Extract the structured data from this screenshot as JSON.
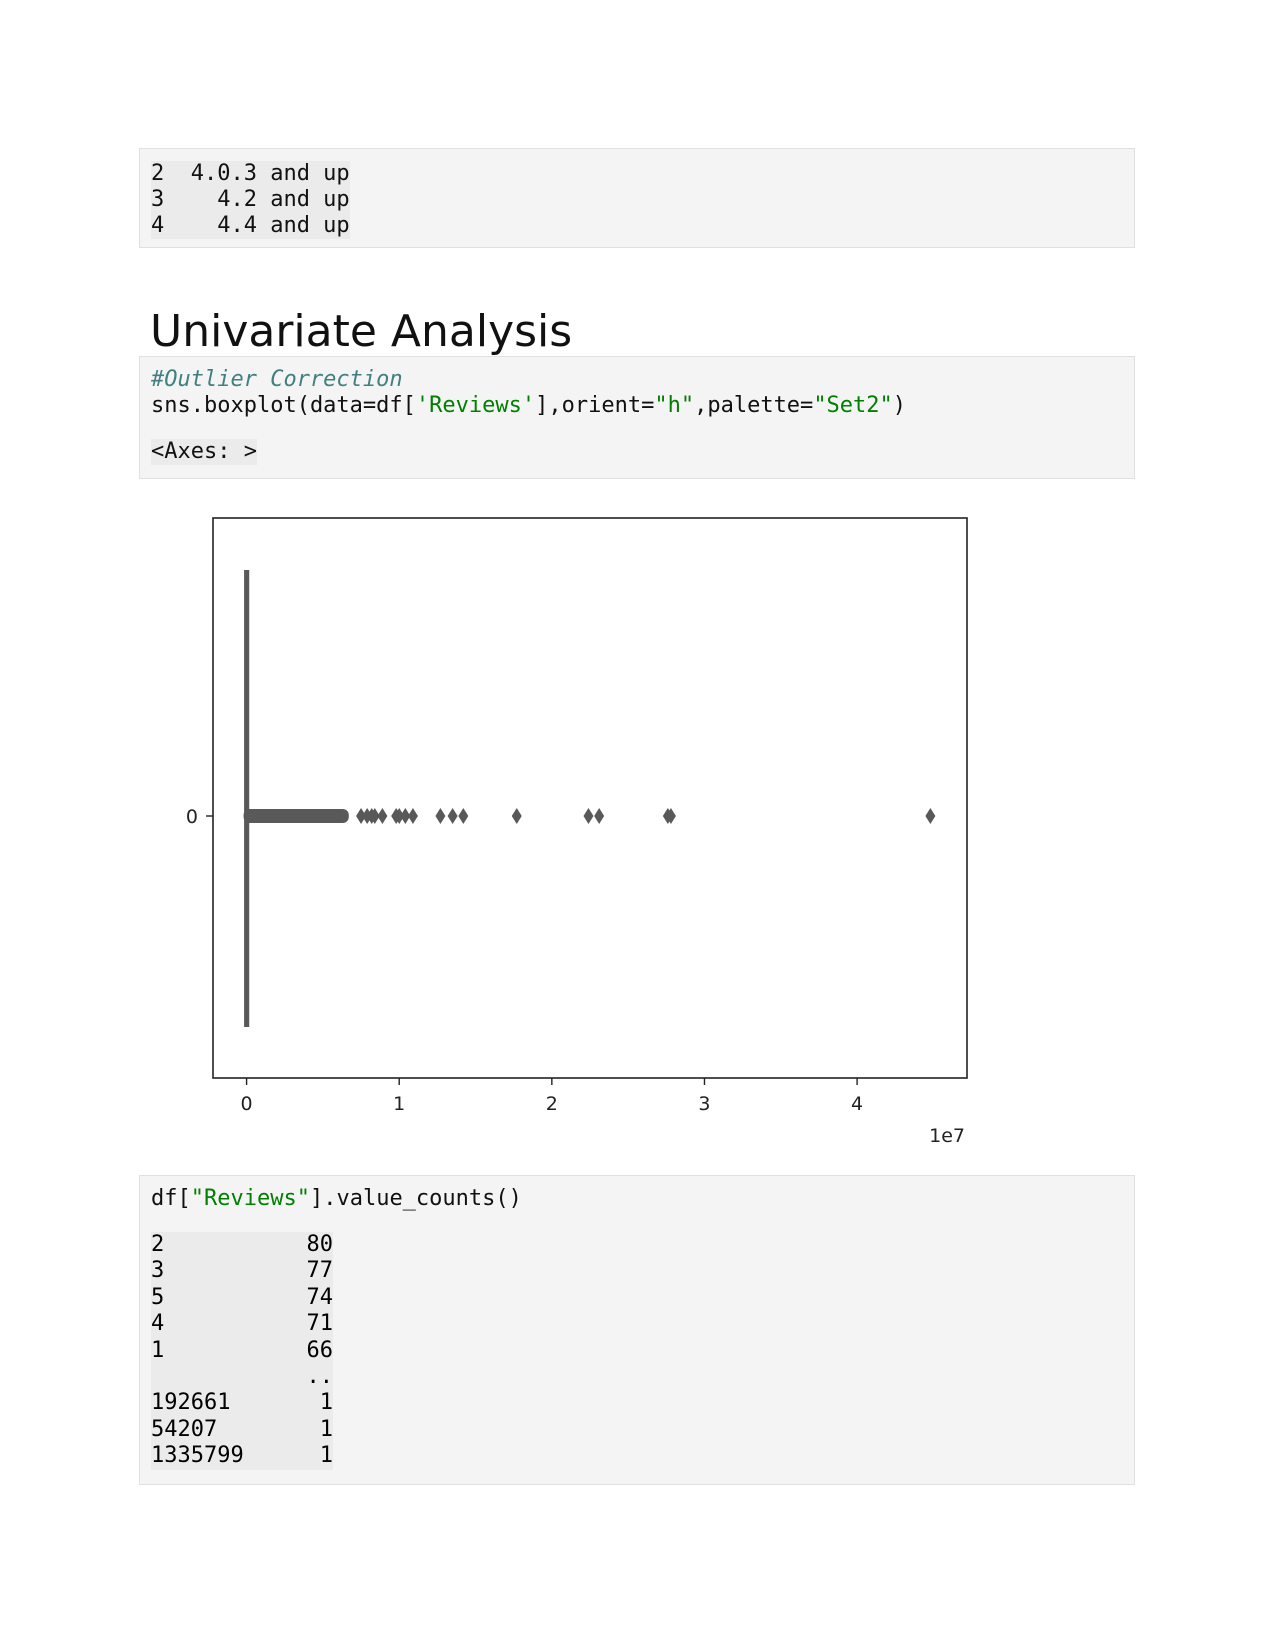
{
  "cell1": {
    "lines": [
      "2  4.0.3 and up",
      "3    4.2 and up",
      "4    4.4 and up"
    ]
  },
  "heading": "Univariate Analysis",
  "cell2": {
    "comment": "#Outlier Correction",
    "code_prefix": "sns.boxplot(data=df[",
    "code_arg1": "'Reviews'",
    "code_mid1": "],orient=",
    "code_arg2": "\"h\"",
    "code_mid2": ",palette=",
    "code_arg3": "\"Set2\"",
    "code_suffix": ")",
    "output": "<Axes: >"
  },
  "chart_data": {
    "type": "box",
    "orient": "h",
    "categories": [
      "0"
    ],
    "x_ticks": [
      "0",
      "1",
      "2",
      "3",
      "4"
    ],
    "x_multiplier": "1e7",
    "xlim": [
      -0.22,
      4.72
    ],
    "box": {
      "q1": 0.0,
      "median": 0.0,
      "q3": 0.001,
      "whisker_low": 0.0,
      "whisker_high": 0.003
    },
    "outliers_dense_range": [
      0.0,
      0.65
    ],
    "outliers": [
      0.75,
      0.79,
      0.82,
      0.84,
      0.89,
      0.98,
      1.0,
      1.04,
      1.09,
      1.27,
      1.35,
      1.42,
      1.77,
      2.24,
      2.31,
      2.76,
      2.78,
      4.48
    ]
  },
  "cell3": {
    "code_prefix": "df[",
    "code_arg": "\"Reviews\"",
    "code_suffix": "].value_counts()",
    "rows": [
      {
        "key": "2",
        "value": "80"
      },
      {
        "key": "3",
        "value": "77"
      },
      {
        "key": "5",
        "value": "74"
      },
      {
        "key": "4",
        "value": "71"
      },
      {
        "key": "1",
        "value": "66"
      },
      {
        "key": "",
        "value": ".."
      },
      {
        "key": "192661",
        "value": "1"
      },
      {
        "key": "54207",
        "value": "1"
      },
      {
        "key": "1335799",
        "value": "1"
      }
    ]
  },
  "colors": {
    "box": "#595959",
    "cell_bg": "#f4f4f4",
    "string": "#008000",
    "comment": "#408080"
  }
}
